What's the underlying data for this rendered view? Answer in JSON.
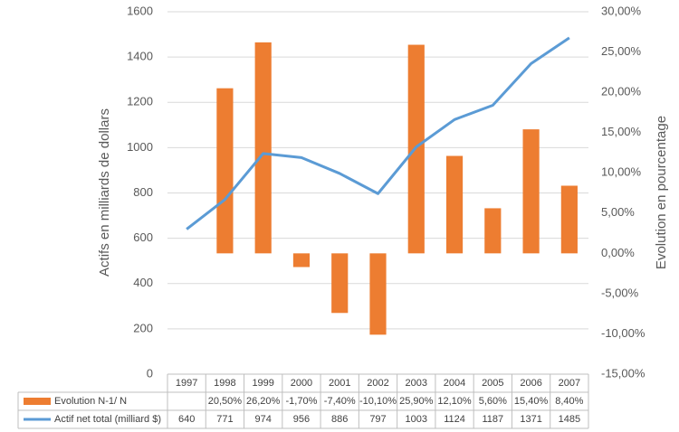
{
  "chart_data": {
    "type": "bar",
    "categories": [
      "1997",
      "1998",
      "1999",
      "2000",
      "2001",
      "2002",
      "2003",
      "2004",
      "2005",
      "2006",
      "2007"
    ],
    "series": [
      {
        "name": "Evolution N-1/ N",
        "type": "bar",
        "axis": "y2",
        "color": "#ed7d31",
        "values": [
          null,
          20.5,
          26.2,
          -1.7,
          -7.4,
          -10.1,
          25.9,
          12.1,
          5.6,
          15.4,
          8.4
        ],
        "value_labels": [
          null,
          "20,50%",
          "26,20%",
          "-1,70%",
          "-7,40%",
          "-10,10%",
          "25,90%",
          "12,10%",
          "5,60%",
          "15,40%",
          "8,40%"
        ]
      },
      {
        "name": "Actif net total (milliard $)",
        "type": "line",
        "color": "#5b9bd5",
        "values": [
          640,
          771,
          974,
          956,
          886,
          797,
          1003,
          1124,
          1187,
          1371,
          1485
        ]
      }
    ],
    "ylabel": "Actifs en milliards de dollars",
    "y2label": "Evolution en pourcentage",
    "ylim": [
      0,
      1600
    ],
    "yticks": [
      0,
      200,
      400,
      600,
      800,
      1000,
      1200,
      1400,
      1600
    ],
    "y2lim": [
      -15,
      30
    ],
    "y2ticks": [
      {
        "value": -15,
        "label": "-15,00%"
      },
      {
        "value": -10,
        "label": "-10,00%"
      },
      {
        "value": -5,
        "label": "-5,00%"
      },
      {
        "value": 0,
        "label": "0,00%"
      },
      {
        "value": 5,
        "label": "5,00%"
      },
      {
        "value": 10,
        "label": "10,00%"
      },
      {
        "value": 15,
        "label": "15,00%"
      },
      {
        "value": 20,
        "label": "20,00%"
      },
      {
        "value": 25,
        "label": "25,00%"
      },
      {
        "value": 30,
        "label": "30,00%"
      }
    ],
    "grid": true
  }
}
